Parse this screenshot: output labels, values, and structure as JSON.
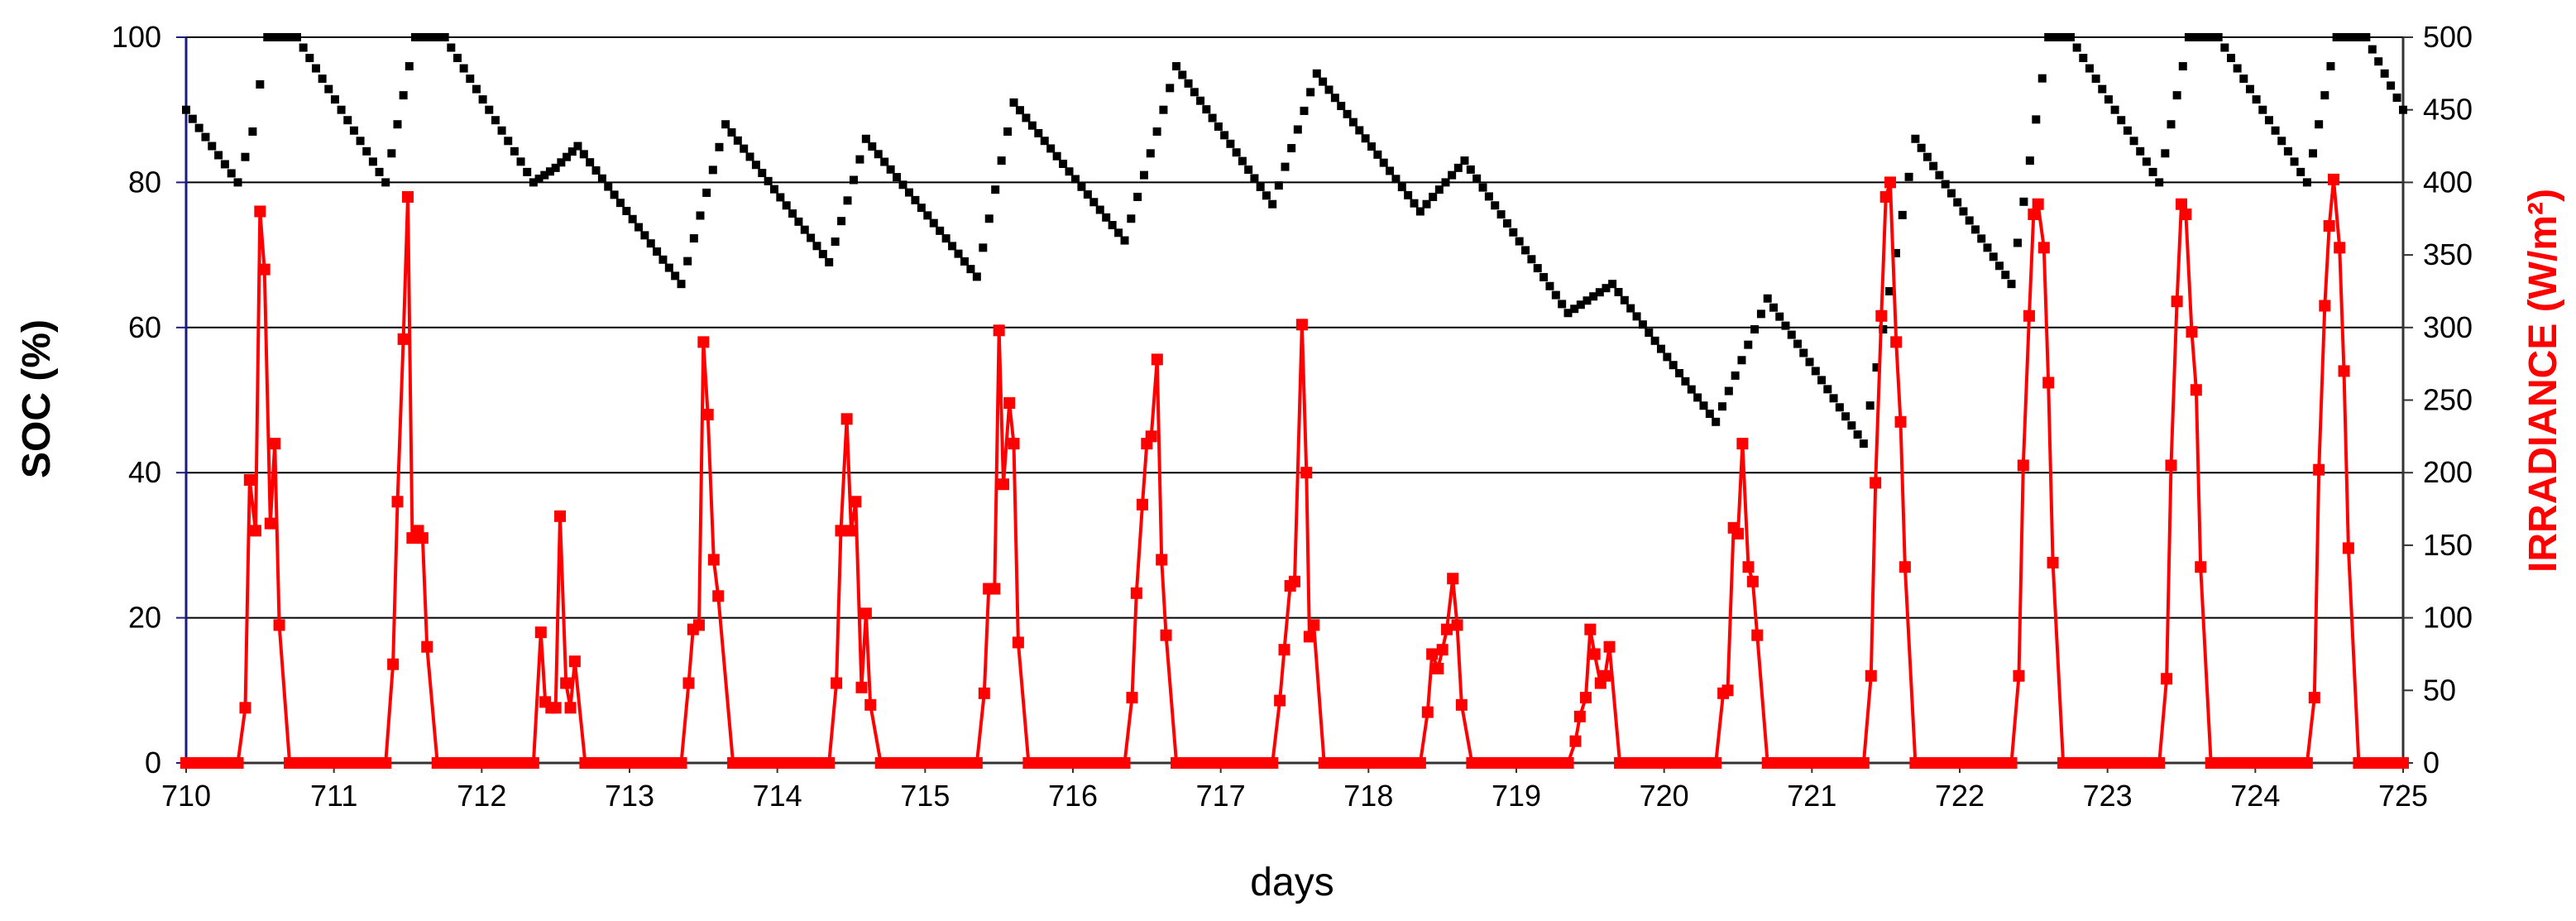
{
  "chart_data": {
    "type": "line",
    "xlabel": "days",
    "ylabel_left": "SOC (%)",
    "ylabel_right": "IRRADIANCE (W/m²)",
    "xlim": [
      710,
      725
    ],
    "ylim_left": [
      0,
      100
    ],
    "ylim_right": [
      0,
      500
    ],
    "x_ticks": [
      "710",
      "711",
      "712",
      "713",
      "714",
      "715",
      "716",
      "717",
      "718",
      "719",
      "720",
      "721",
      "722",
      "723",
      "724",
      "725"
    ],
    "y_ticks_left": [
      "0",
      "20",
      "40",
      "60",
      "80",
      "100"
    ],
    "y_ticks_right": [
      "0",
      "50",
      "100",
      "150",
      "200",
      "250",
      "300",
      "350",
      "400",
      "450",
      "500"
    ],
    "grid": "horizontal",
    "colors": {
      "soc": "#000000",
      "irradiance": "#ff0000",
      "grid": "#000000",
      "left_axis": "#1a1a80"
    },
    "series": [
      {
        "axis": "left",
        "marker": "square",
        "line": false,
        "color": "#000000",
        "points": [
          [
            710.0,
            90
          ],
          [
            710.35,
            80
          ],
          [
            710.45,
            87
          ],
          [
            710.55,
            100
          ],
          [
            710.75,
            100
          ],
          [
            711.35,
            80
          ],
          [
            711.55,
            100
          ],
          [
            711.75,
            100
          ],
          [
            712.35,
            80
          ],
          [
            712.5,
            82
          ],
          [
            712.65,
            85
          ],
          [
            713.35,
            66
          ],
          [
            713.65,
            88
          ],
          [
            714.35,
            69
          ],
          [
            714.6,
            86
          ],
          [
            715.35,
            67
          ],
          [
            715.6,
            91
          ],
          [
            716.35,
            72
          ],
          [
            716.7,
            96
          ],
          [
            717.35,
            77
          ],
          [
            717.65,
            95
          ],
          [
            718.35,
            76
          ],
          [
            718.65,
            83
          ],
          [
            719.35,
            62
          ],
          [
            719.65,
            66
          ],
          [
            720.35,
            47
          ],
          [
            720.7,
            64
          ],
          [
            721.35,
            44
          ],
          [
            721.7,
            86
          ],
          [
            722.35,
            66
          ],
          [
            722.6,
            100
          ],
          [
            722.75,
            100
          ],
          [
            723.35,
            80
          ],
          [
            723.55,
            100
          ],
          [
            723.75,
            100
          ],
          [
            724.35,
            80
          ],
          [
            724.55,
            100
          ],
          [
            724.75,
            100
          ],
          [
            725.0,
            90
          ]
        ]
      },
      {
        "axis": "right",
        "marker": "square",
        "line": true,
        "color": "#ff0000",
        "points": [
          [
            710.0,
            0
          ],
          [
            710.35,
            0
          ],
          [
            710.4,
            38
          ],
          [
            710.43,
            195
          ],
          [
            710.47,
            160
          ],
          [
            710.5,
            380
          ],
          [
            710.53,
            340
          ],
          [
            710.57,
            165
          ],
          [
            710.6,
            220
          ],
          [
            710.63,
            95
          ],
          [
            710.7,
            0
          ],
          [
            711.35,
            0
          ],
          [
            711.4,
            68
          ],
          [
            711.43,
            180
          ],
          [
            711.47,
            292
          ],
          [
            711.5,
            390
          ],
          [
            711.53,
            155
          ],
          [
            711.57,
            160
          ],
          [
            711.6,
            155
          ],
          [
            711.63,
            80
          ],
          [
            711.7,
            0
          ],
          [
            712.35,
            0
          ],
          [
            712.4,
            90
          ],
          [
            712.43,
            42
          ],
          [
            712.47,
            38
          ],
          [
            712.5,
            38
          ],
          [
            712.53,
            170
          ],
          [
            712.57,
            55
          ],
          [
            712.6,
            38
          ],
          [
            712.63,
            70
          ],
          [
            712.7,
            0
          ],
          [
            713.35,
            0
          ],
          [
            713.4,
            55
          ],
          [
            713.43,
            92
          ],
          [
            713.47,
            95
          ],
          [
            713.5,
            290
          ],
          [
            713.53,
            240
          ],
          [
            713.57,
            140
          ],
          [
            713.6,
            115
          ],
          [
            713.7,
            0
          ],
          [
            714.35,
            0
          ],
          [
            714.4,
            55
          ],
          [
            714.43,
            160
          ],
          [
            714.47,
            237
          ],
          [
            714.5,
            160
          ],
          [
            714.53,
            180
          ],
          [
            714.57,
            52
          ],
          [
            714.6,
            103
          ],
          [
            714.63,
            40
          ],
          [
            714.7,
            0
          ],
          [
            715.35,
            0
          ],
          [
            715.4,
            48
          ],
          [
            715.43,
            120
          ],
          [
            715.47,
            120
          ],
          [
            715.5,
            298
          ],
          [
            715.53,
            192
          ],
          [
            715.57,
            248
          ],
          [
            715.6,
            220
          ],
          [
            715.63,
            83
          ],
          [
            715.7,
            0
          ],
          [
            716.35,
            0
          ],
          [
            716.4,
            45
          ],
          [
            716.43,
            117
          ],
          [
            716.47,
            178
          ],
          [
            716.5,
            220
          ],
          [
            716.53,
            225
          ],
          [
            716.57,
            278
          ],
          [
            716.6,
            140
          ],
          [
            716.63,
            88
          ],
          [
            716.7,
            0
          ],
          [
            717.35,
            0
          ],
          [
            717.4,
            43
          ],
          [
            717.43,
            78
          ],
          [
            717.47,
            122
          ],
          [
            717.5,
            125
          ],
          [
            717.55,
            302
          ],
          [
            717.58,
            200
          ],
          [
            717.6,
            87
          ],
          [
            717.63,
            95
          ],
          [
            717.7,
            0
          ],
          [
            718.35,
            0
          ],
          [
            718.4,
            35
          ],
          [
            718.43,
            75
          ],
          [
            718.47,
            65
          ],
          [
            718.5,
            78
          ],
          [
            718.53,
            92
          ],
          [
            718.57,
            127
          ],
          [
            718.6,
            95
          ],
          [
            718.63,
            40
          ],
          [
            718.7,
            0
          ],
          [
            719.35,
            0
          ],
          [
            719.4,
            15
          ],
          [
            719.43,
            32
          ],
          [
            719.47,
            45
          ],
          [
            719.5,
            92
          ],
          [
            719.53,
            75
          ],
          [
            719.57,
            55
          ],
          [
            719.6,
            60
          ],
          [
            719.63,
            80
          ],
          [
            719.7,
            0
          ],
          [
            720.35,
            0
          ],
          [
            720.4,
            48
          ],
          [
            720.43,
            50
          ],
          [
            720.47,
            162
          ],
          [
            720.5,
            158
          ],
          [
            720.53,
            220
          ],
          [
            720.57,
            135
          ],
          [
            720.6,
            125
          ],
          [
            720.63,
            88
          ],
          [
            720.7,
            0
          ],
          [
            721.35,
            0
          ],
          [
            721.4,
            60
          ],
          [
            721.43,
            193
          ],
          [
            721.47,
            308
          ],
          [
            721.5,
            390
          ],
          [
            721.53,
            400
          ],
          [
            721.57,
            290
          ],
          [
            721.6,
            235
          ],
          [
            721.63,
            135
          ],
          [
            721.7,
            0
          ],
          [
            722.35,
            0
          ],
          [
            722.4,
            60
          ],
          [
            722.43,
            205
          ],
          [
            722.47,
            308
          ],
          [
            722.5,
            378
          ],
          [
            722.53,
            385
          ],
          [
            722.57,
            355
          ],
          [
            722.6,
            262
          ],
          [
            722.63,
            138
          ],
          [
            722.7,
            0
          ],
          [
            723.35,
            0
          ],
          [
            723.4,
            58
          ],
          [
            723.43,
            205
          ],
          [
            723.47,
            318
          ],
          [
            723.5,
            385
          ],
          [
            723.53,
            378
          ],
          [
            723.57,
            297
          ],
          [
            723.6,
            257
          ],
          [
            723.63,
            135
          ],
          [
            723.7,
            0
          ],
          [
            724.35,
            0
          ],
          [
            724.4,
            45
          ],
          [
            724.43,
            202
          ],
          [
            724.47,
            315
          ],
          [
            724.5,
            370
          ],
          [
            724.53,
            402
          ],
          [
            724.57,
            355
          ],
          [
            724.6,
            270
          ],
          [
            724.63,
            148
          ],
          [
            724.7,
            0
          ],
          [
            725.0,
            0
          ]
        ]
      }
    ]
  }
}
